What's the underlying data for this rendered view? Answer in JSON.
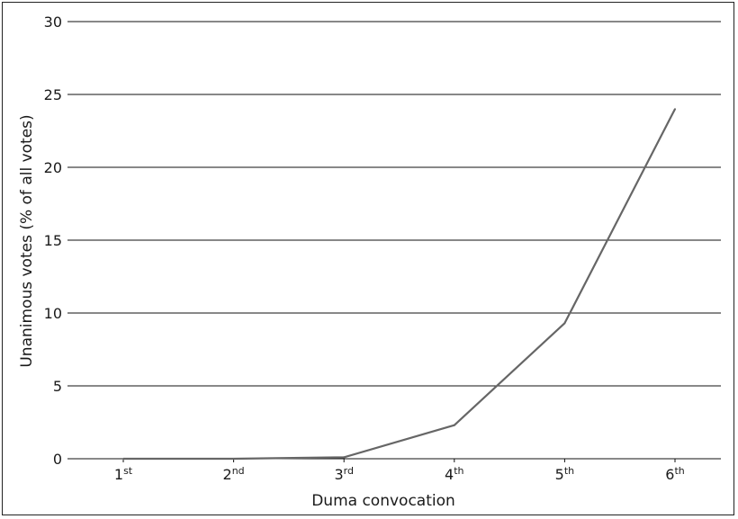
{
  "chart_data": {
    "type": "line",
    "xlabel": "Duma convocation",
    "ylabel": "Unanimous votes (% of all votes)",
    "categories": [
      {
        "num": "1",
        "suffix": "st"
      },
      {
        "num": "2",
        "suffix": "nd"
      },
      {
        "num": "3",
        "suffix": "rd"
      },
      {
        "num": "4",
        "suffix": "th"
      },
      {
        "num": "5",
        "suffix": "th"
      },
      {
        "num": "6",
        "suffix": "th"
      }
    ],
    "values": [
      0,
      0,
      0.1,
      2.3,
      9.3,
      24
    ],
    "ylim": [
      0,
      30
    ],
    "yticks": [
      0,
      5,
      10,
      15,
      20,
      25,
      30
    ],
    "grid": true,
    "line_color": "#666666",
    "grid_color": "#111111"
  }
}
